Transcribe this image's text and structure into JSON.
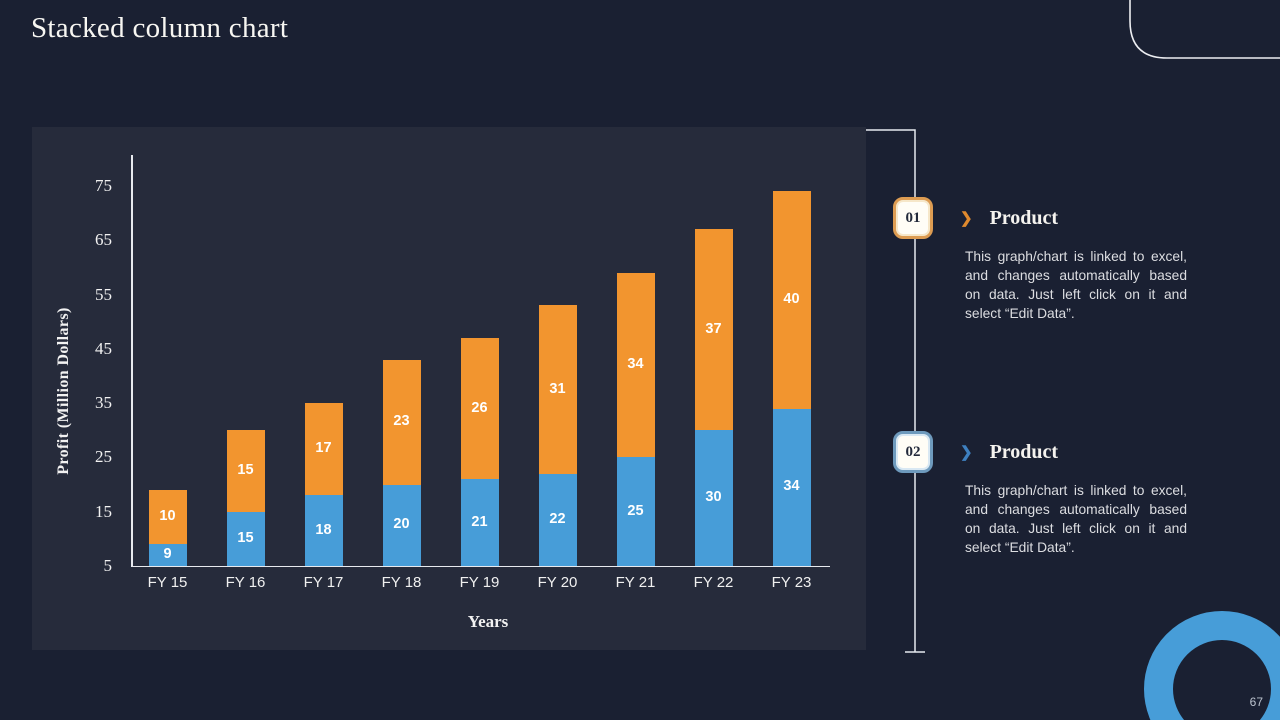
{
  "slide": {
    "title": "Stacked column chart",
    "page_number": "67"
  },
  "chart_data": {
    "type": "bar",
    "stacked": true,
    "title": "",
    "categories": [
      "FY 15",
      "FY 16",
      "FY 17",
      "FY 18",
      "FY 19",
      "FY 20",
      "FY 21",
      "FY 22",
      "FY 23"
    ],
    "series": [
      {
        "name": "series-bottom",
        "color": "#479dd8",
        "values": [
          9,
          15,
          18,
          20,
          21,
          22,
          25,
          30,
          34
        ]
      },
      {
        "name": "series-top",
        "color": "#f2952f",
        "values": [
          10,
          15,
          17,
          23,
          26,
          31,
          34,
          37,
          40
        ]
      }
    ],
    "xlabel": "Years",
    "ylabel": "Profit  (Million Dollars)",
    "y_ticks": [
      5,
      15,
      25,
      35,
      45,
      55,
      65,
      75
    ],
    "ylim": [
      5,
      80
    ],
    "grid": false,
    "legend": "none",
    "data_labels": true
  },
  "callouts": [
    {
      "number": "01",
      "title": "Product",
      "body": "This graph/chart is linked to excel, and changes automatically based on data. Just left click on it and select “Edit Data”."
    },
    {
      "number": "02",
      "title": "Product",
      "body": "This graph/chart is linked to excel, and changes automatically based on data. Just left click on it and select “Edit Data”."
    }
  ]
}
